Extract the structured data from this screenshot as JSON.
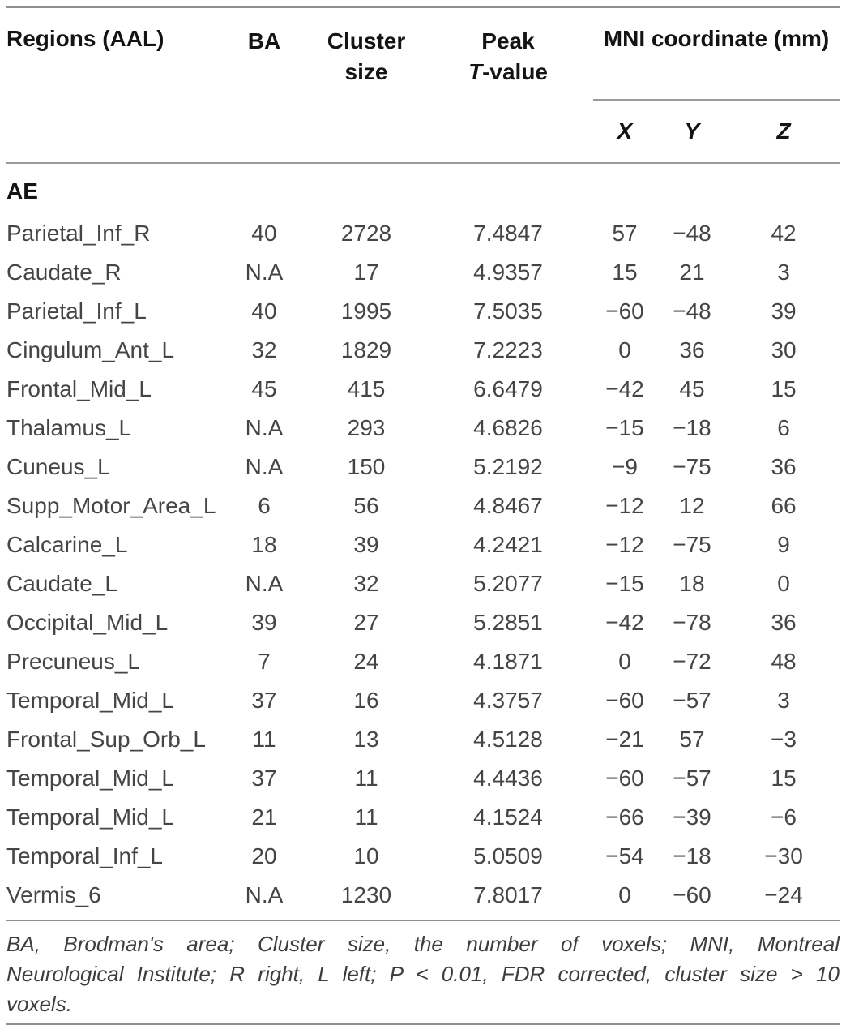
{
  "table": {
    "header": {
      "regions": "Regions (AAL)",
      "ba": "BA",
      "cluster_line1": "Cluster",
      "cluster_line2": "size",
      "peak_line1": "Peak",
      "peak_t_italic": "T",
      "peak_line2_rest": "-value",
      "mni_group": "MNI coordinate (mm)",
      "x": "X",
      "y": "Y",
      "z": "Z"
    },
    "section_label": "AE",
    "rows": [
      {
        "region": "Parietal_Inf_R",
        "ba": "40",
        "cluster": "2728",
        "t": "7.4847",
        "x": "57",
        "y": "−48",
        "z": "42"
      },
      {
        "region": "Caudate_R",
        "ba": "N.A",
        "cluster": "17",
        "t": "4.9357",
        "x": "15",
        "y": "21",
        "z": "3"
      },
      {
        "region": "Parietal_Inf_L",
        "ba": "40",
        "cluster": "1995",
        "t": "7.5035",
        "x": "−60",
        "y": "−48",
        "z": "39"
      },
      {
        "region": "Cingulum_Ant_L",
        "ba": "32",
        "cluster": "1829",
        "t": "7.2223",
        "x": "0",
        "y": "36",
        "z": "30"
      },
      {
        "region": "Frontal_Mid_L",
        "ba": "45",
        "cluster": "415",
        "t": "6.6479",
        "x": "−42",
        "y": "45",
        "z": "15"
      },
      {
        "region": "Thalamus_L",
        "ba": "N.A",
        "cluster": "293",
        "t": "4.6826",
        "x": "−15",
        "y": "−18",
        "z": "6"
      },
      {
        "region": "Cuneus_L",
        "ba": "N.A",
        "cluster": "150",
        "t": "5.2192",
        "x": "−9",
        "y": "−75",
        "z": "36"
      },
      {
        "region": "Supp_Motor_Area_L",
        "ba": "6",
        "cluster": "56",
        "t": "4.8467",
        "x": "−12",
        "y": "12",
        "z": "66"
      },
      {
        "region": "Calcarine_L",
        "ba": "18",
        "cluster": "39",
        "t": "4.2421",
        "x": "−12",
        "y": "−75",
        "z": "9"
      },
      {
        "region": "Caudate_L",
        "ba": "N.A",
        "cluster": "32",
        "t": "5.2077",
        "x": "−15",
        "y": "18",
        "z": "0"
      },
      {
        "region": "Occipital_Mid_L",
        "ba": "39",
        "cluster": "27",
        "t": "5.2851",
        "x": "−42",
        "y": "−78",
        "z": "36"
      },
      {
        "region": "Precuneus_L",
        "ba": "7",
        "cluster": "24",
        "t": "4.1871",
        "x": "0",
        "y": "−72",
        "z": "48"
      },
      {
        "region": "Temporal_Mid_L",
        "ba": "37",
        "cluster": "16",
        "t": "4.3757",
        "x": "−60",
        "y": "−57",
        "z": "3"
      },
      {
        "region": "Frontal_Sup_Orb_L",
        "ba": "11",
        "cluster": "13",
        "t": "4.5128",
        "x": "−21",
        "y": "57",
        "z": "−3"
      },
      {
        "region": "Temporal_Mid_L",
        "ba": "37",
        "cluster": "11",
        "t": "4.4436",
        "x": "−60",
        "y": "−57",
        "z": "15"
      },
      {
        "region": "Temporal_Mid_L",
        "ba": "21",
        "cluster": "11",
        "t": "4.1524",
        "x": "−66",
        "y": "−39",
        "z": "−6"
      },
      {
        "region": "Temporal_Inf_L",
        "ba": "20",
        "cluster": "10",
        "t": "5.0509",
        "x": "−54",
        "y": "−18",
        "z": "−30"
      },
      {
        "region": "Vermis_6",
        "ba": "N.A",
        "cluster": "1230",
        "t": "7.8017",
        "x": "0",
        "y": "−60",
        "z": "−24"
      }
    ]
  },
  "footnote": {
    "lines": [
      "BA, Brodman's area; Cluster size, the number of voxels; MNI, Montreal",
      "Neurological Institute; R right, L left; P < 0.01, FDR corrected, cluster size > 10",
      "voxels."
    ]
  },
  "colors": {
    "rule_gray": "#8f8f8f",
    "header_text": "#141414",
    "body_text": "#454545"
  }
}
